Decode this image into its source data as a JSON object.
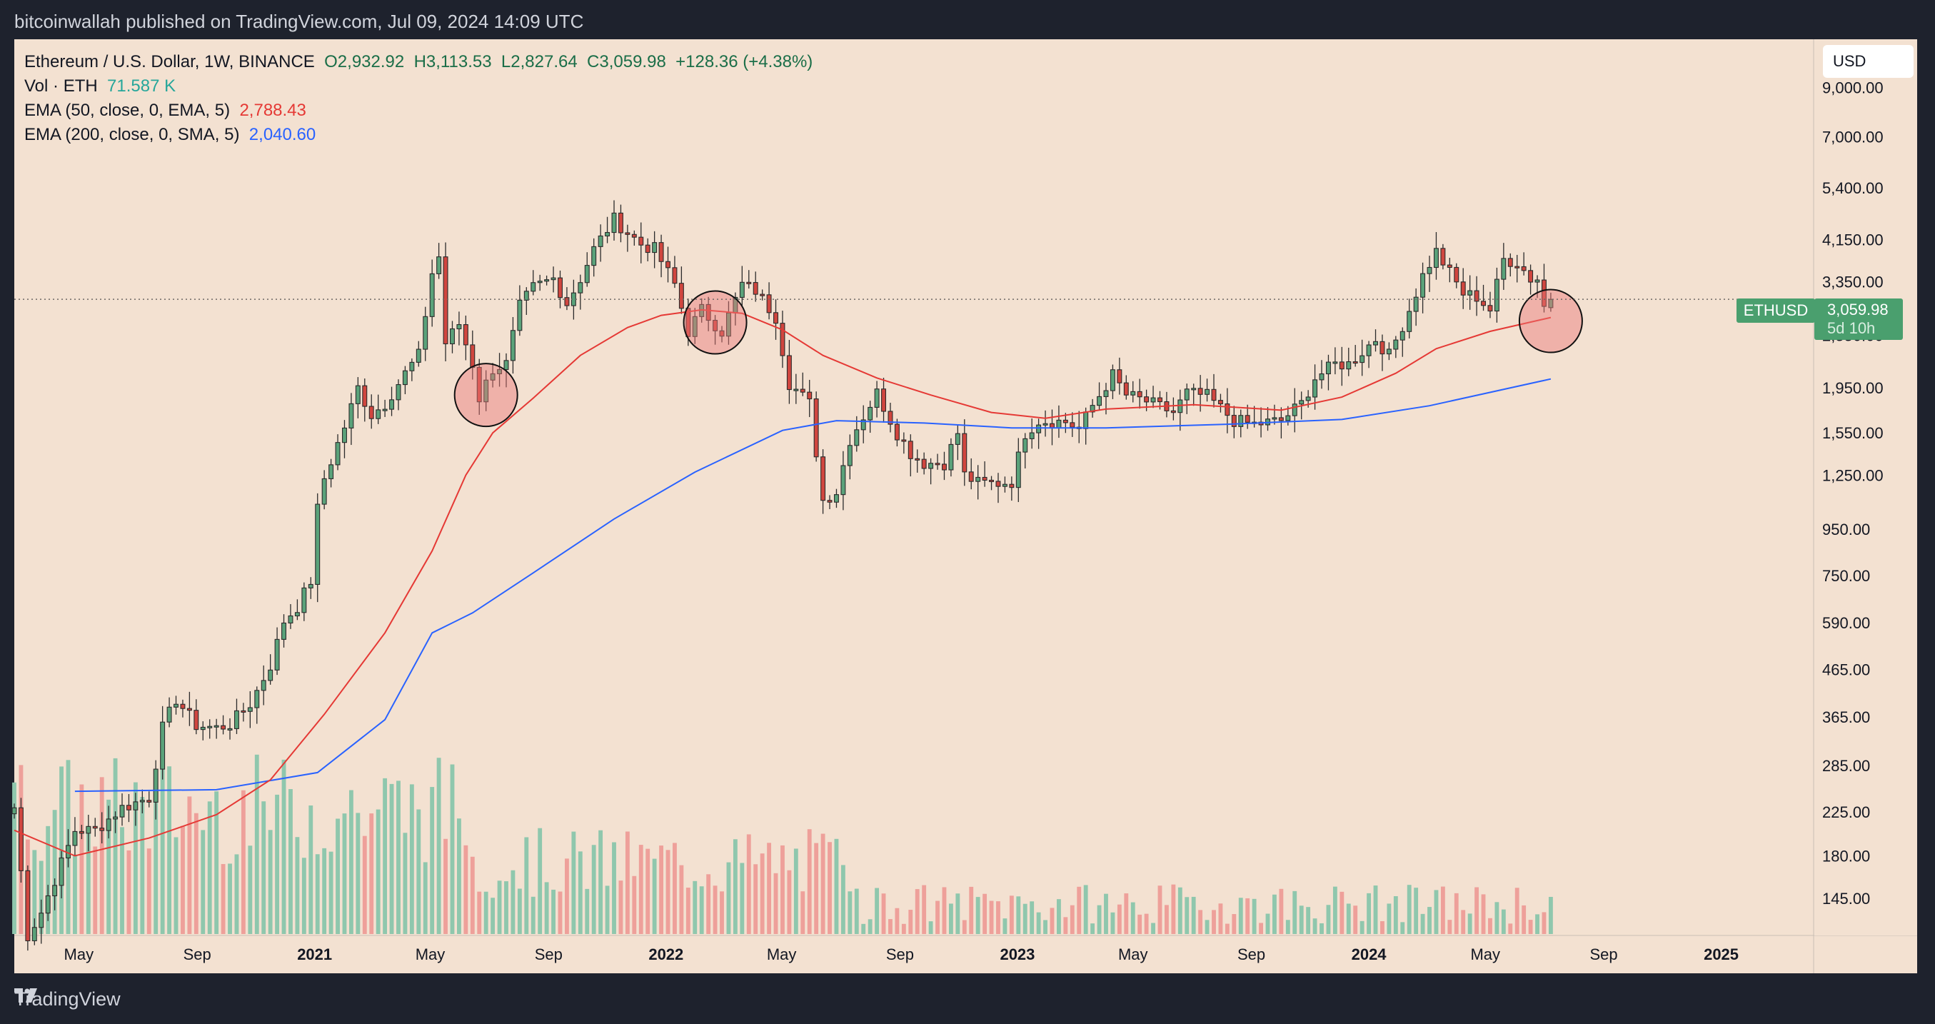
{
  "header": {
    "published_line": "bitcoinwallah published on TradingView.com, Jul 09, 2024 14:09 UTC"
  },
  "legend": {
    "symbol": "Ethereum / U.S. Dollar, 1W, BINANCE",
    "open": "O2,932.92",
    "high": "H3,113.53",
    "low": "L2,827.64",
    "close": "C3,059.98",
    "change": "+128.36 (+4.38%)",
    "vol_label": "Vol · ETH",
    "vol_value": "71.587 K",
    "ema50_label": "EMA (50, close, 0, EMA, 5)",
    "ema50_value": "2,788.43",
    "ema200_label": "EMA (200, close, 0, SMA, 5)",
    "ema200_value": "2,040.60"
  },
  "currency_button": "USD",
  "price_label": {
    "symbol": "ETHUSD",
    "price": "3,059.98",
    "countdown": "5d 10h"
  },
  "footer": {
    "brand": "TradingView"
  },
  "colors": {
    "up": "#5aa27a",
    "down": "#d0463f",
    "ema50": "#e53935",
    "ema200": "#2962ff",
    "vol_up": "#8fc7ad",
    "vol_down": "#eea09a",
    "background": "#f3e1d1",
    "frame": "#1e222d"
  },
  "chart_data": {
    "type": "candlestick",
    "scale": "log",
    "ylim": [
      120,
      11500
    ],
    "y_ticks": [
      {
        "v": 9000,
        "label": "9,000.00"
      },
      {
        "v": 7000,
        "label": "7,000.00"
      },
      {
        "v": 5400,
        "label": "5,400.00"
      },
      {
        "v": 4150,
        "label": "4,150.00"
      },
      {
        "v": 3350,
        "label": "3,350.00"
      },
      {
        "v": 2550,
        "label": "2,550.00"
      },
      {
        "v": 1950,
        "label": "1,950.00"
      },
      {
        "v": 1550,
        "label": "1,550.00"
      },
      {
        "v": 1250,
        "label": "1,250.00"
      },
      {
        "v": 950,
        "label": "950.00"
      },
      {
        "v": 750,
        "label": "750.00"
      },
      {
        "v": 590,
        "label": "590.00"
      },
      {
        "v": 465,
        "label": "465.00"
      },
      {
        "v": 365,
        "label": "365.00"
      },
      {
        "v": 285,
        "label": "285.00"
      },
      {
        "v": 225,
        "label": "225.00"
      },
      {
        "v": 180,
        "label": "180.00"
      },
      {
        "v": 145,
        "label": "145.00"
      }
    ],
    "x_ticks": [
      {
        "date": "2020-05-01",
        "label": "May"
      },
      {
        "date": "2020-09-01",
        "label": "Sep"
      },
      {
        "date": "2021-01-01",
        "label": "2021"
      },
      {
        "date": "2021-05-01",
        "label": "May"
      },
      {
        "date": "2021-09-01",
        "label": "Sep"
      },
      {
        "date": "2022-01-01",
        "label": "2022"
      },
      {
        "date": "2022-05-01",
        "label": "May"
      },
      {
        "date": "2022-09-01",
        "label": "Sep"
      },
      {
        "date": "2023-01-01",
        "label": "2023"
      },
      {
        "date": "2023-05-01",
        "label": "May"
      },
      {
        "date": "2023-09-01",
        "label": "Sep"
      },
      {
        "date": "2024-01-01",
        "label": "2024"
      },
      {
        "date": "2024-05-01",
        "label": "May"
      },
      {
        "date": "2024-09-01",
        "label": "Sep"
      },
      {
        "date": "2025-01-01",
        "label": "2025"
      }
    ],
    "xlim": [
      "2020-02-24",
      "2025-04-07"
    ],
    "last_price": 3059.98,
    "close_points": [
      [
        "2020-02-24",
        230
      ],
      [
        "2020-03-09",
        120
      ],
      [
        "2020-03-23",
        135
      ],
      [
        "2020-04-27",
        205
      ],
      [
        "2020-05-18",
        205
      ],
      [
        "2020-06-15",
        230
      ],
      [
        "2020-07-13",
        242
      ],
      [
        "2020-07-27",
        345
      ],
      [
        "2020-08-10",
        400
      ],
      [
        "2020-08-31",
        350
      ],
      [
        "2020-09-21",
        345
      ],
      [
        "2020-10-05",
        352
      ],
      [
        "2020-10-26",
        390
      ],
      [
        "2020-11-16",
        475
      ],
      [
        "2020-11-30",
        595
      ],
      [
        "2020-12-14",
        640
      ],
      [
        "2020-12-28",
        730
      ],
      [
        "2021-01-04",
        1050
      ],
      [
        "2021-01-11",
        1230
      ],
      [
        "2021-02-01",
        1600
      ],
      [
        "2021-02-15",
        1950
      ],
      [
        "2021-03-01",
        1700
      ],
      [
        "2021-03-15",
        1800
      ],
      [
        "2021-04-05",
        2100
      ],
      [
        "2021-04-19",
        2300
      ],
      [
        "2021-05-03",
        3500
      ],
      [
        "2021-05-10",
        3800
      ],
      [
        "2021-05-17",
        2450
      ],
      [
        "2021-05-31",
        2700
      ],
      [
        "2021-06-14",
        2200
      ],
      [
        "2021-06-21",
        1850
      ],
      [
        "2021-07-05",
        2150
      ],
      [
        "2021-07-19",
        2200
      ],
      [
        "2021-08-02",
        2950
      ],
      [
        "2021-08-16",
        3250
      ],
      [
        "2021-09-06",
        3400
      ],
      [
        "2021-09-20",
        3000
      ],
      [
        "2021-10-04",
        3400
      ],
      [
        "2021-10-18",
        3950
      ],
      [
        "2021-11-08",
        4600
      ],
      [
        "2021-11-22",
        4300
      ],
      [
        "2021-12-06",
        4050
      ],
      [
        "2021-12-20",
        3950
      ],
      [
        "2022-01-10",
        3300
      ],
      [
        "2022-01-24",
        2600
      ],
      [
        "2022-02-07",
        2900
      ],
      [
        "2022-02-28",
        2600
      ],
      [
        "2022-03-21",
        3300
      ],
      [
        "2022-04-04",
        3200
      ],
      [
        "2022-04-25",
        2800
      ],
      [
        "2022-05-09",
        2000
      ],
      [
        "2022-05-30",
        1800
      ],
      [
        "2022-06-13",
        1100
      ],
      [
        "2022-06-27",
        1150
      ],
      [
        "2022-07-11",
        1500
      ],
      [
        "2022-08-08",
        1900
      ],
      [
        "2022-08-29",
        1550
      ],
      [
        "2022-09-12",
        1400
      ],
      [
        "2022-09-26",
        1330
      ],
      [
        "2022-10-17",
        1330
      ],
      [
        "2022-10-31",
        1550
      ],
      [
        "2022-11-07",
        1250
      ],
      [
        "2022-11-21",
        1200
      ],
      [
        "2022-12-12",
        1200
      ],
      [
        "2022-12-26",
        1210
      ],
      [
        "2023-01-09",
        1550
      ],
      [
        "2023-01-23",
        1650
      ],
      [
        "2023-02-20",
        1640
      ],
      [
        "2023-03-06",
        1580
      ],
      [
        "2023-03-20",
        1780
      ],
      [
        "2023-04-10",
        2080
      ],
      [
        "2023-04-24",
        1880
      ],
      [
        "2023-05-15",
        1820
      ],
      [
        "2023-06-12",
        1720
      ],
      [
        "2023-06-26",
        1900
      ],
      [
        "2023-07-17",
        1870
      ],
      [
        "2023-08-14",
        1650
      ],
      [
        "2023-09-04",
        1620
      ],
      [
        "2023-10-02",
        1650
      ],
      [
        "2023-10-23",
        1800
      ],
      [
        "2023-11-06",
        2050
      ],
      [
        "2023-11-27",
        2200
      ],
      [
        "2023-12-11",
        2200
      ],
      [
        "2024-01-08",
        2500
      ],
      [
        "2024-01-22",
        2300
      ],
      [
        "2024-02-12",
        2900
      ],
      [
        "2024-02-26",
        3450
      ],
      [
        "2024-03-11",
        3900
      ],
      [
        "2024-03-25",
        3500
      ],
      [
        "2024-04-08",
        3150
      ],
      [
        "2024-04-22",
        3100
      ],
      [
        "2024-05-06",
        2900
      ],
      [
        "2024-05-20",
        3750
      ],
      [
        "2024-06-03",
        3700
      ],
      [
        "2024-06-17",
        3400
      ],
      [
        "2024-06-24",
        3400
      ],
      [
        "2024-07-01",
        2950
      ],
      [
        "2024-07-08",
        3060
      ]
    ],
    "ema50_points": [
      [
        "2020-02-24",
        205
      ],
      [
        "2020-04-27",
        180
      ],
      [
        "2020-07-13",
        197
      ],
      [
        "2020-09-21",
        222
      ],
      [
        "2020-11-16",
        265
      ],
      [
        "2021-01-11",
        370
      ],
      [
        "2021-03-15",
        560
      ],
      [
        "2021-05-03",
        850
      ],
      [
        "2021-06-07",
        1250
      ],
      [
        "2021-07-05",
        1550
      ],
      [
        "2021-08-16",
        1850
      ],
      [
        "2021-10-04",
        2300
      ],
      [
        "2021-11-22",
        2650
      ],
      [
        "2021-12-27",
        2820
      ],
      [
        "2022-02-07",
        2900
      ],
      [
        "2022-03-21",
        2850
      ],
      [
        "2022-05-02",
        2620
      ],
      [
        "2022-06-13",
        2300
      ],
      [
        "2022-08-08",
        2050
      ],
      [
        "2022-10-03",
        1880
      ],
      [
        "2022-12-05",
        1720
      ],
      [
        "2023-01-30",
        1670
      ],
      [
        "2023-04-03",
        1750
      ],
      [
        "2023-07-03",
        1790
      ],
      [
        "2023-10-02",
        1740
      ],
      [
        "2023-12-04",
        1860
      ],
      [
        "2024-01-29",
        2100
      ],
      [
        "2024-03-11",
        2380
      ],
      [
        "2024-05-06",
        2600
      ],
      [
        "2024-07-08",
        2790
      ]
    ],
    "ema200_points": [
      [
        "2020-04-27",
        250
      ],
      [
        "2020-09-21",
        252
      ],
      [
        "2021-01-04",
        275
      ],
      [
        "2021-03-15",
        360
      ],
      [
        "2021-05-03",
        560
      ],
      [
        "2021-06-14",
        620
      ],
      [
        "2021-08-16",
        760
      ],
      [
        "2021-11-08",
        1000
      ],
      [
        "2022-01-31",
        1270
      ],
      [
        "2022-05-02",
        1570
      ],
      [
        "2022-06-27",
        1650
      ],
      [
        "2022-09-26",
        1630
      ],
      [
        "2022-12-26",
        1590
      ],
      [
        "2023-04-03",
        1590
      ],
      [
        "2023-08-07",
        1620
      ],
      [
        "2023-12-04",
        1660
      ],
      [
        "2024-03-04",
        1780
      ],
      [
        "2024-07-08",
        2040
      ]
    ],
    "highlight_circles": [
      {
        "date": "2021-06-28",
        "price": 1880
      },
      {
        "date": "2022-02-21",
        "price": 2720
      },
      {
        "date": "2024-07-08",
        "price": 2740
      }
    ]
  }
}
